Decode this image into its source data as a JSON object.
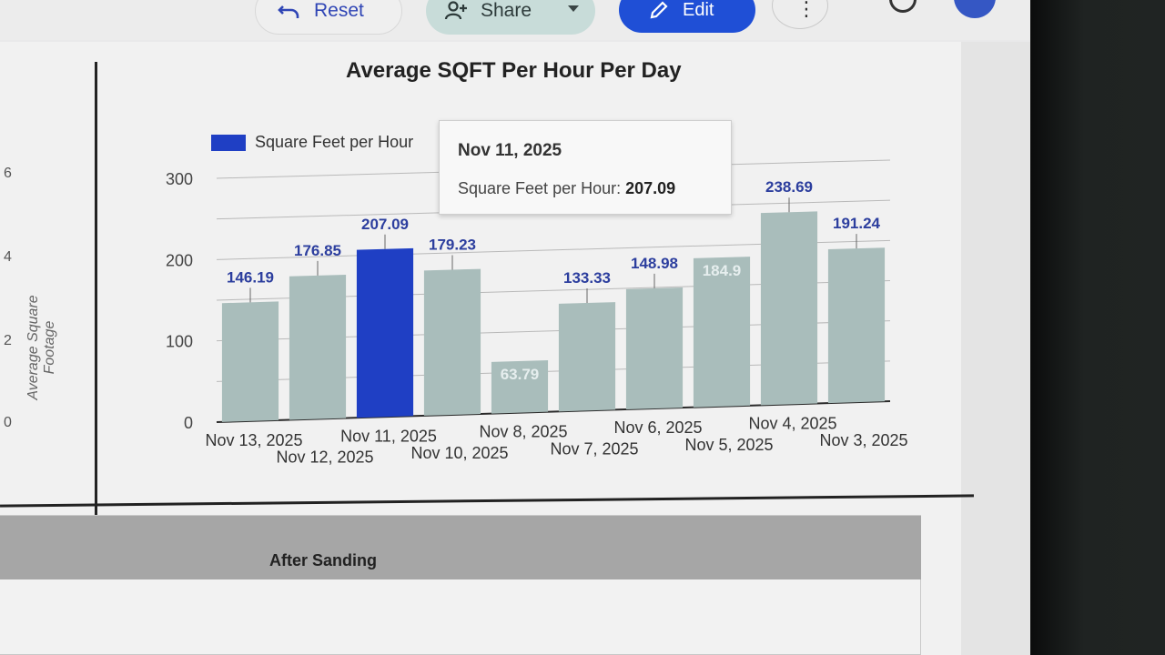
{
  "toolbar": {
    "reset_label": "Reset",
    "share_label": "Share",
    "edit_label": "Edit"
  },
  "left_chart": {
    "y_label": "Average Square Footage",
    "y_ticks": [
      "6",
      "4",
      "2",
      "0"
    ]
  },
  "chart_data": {
    "type": "bar",
    "title": "Average SQFT Per Hour Per Day",
    "legend": {
      "label": "Square Feet per Hour",
      "position": "top-left"
    },
    "categories": [
      "Nov 13, 2025",
      "Nov 12, 2025",
      "Nov 11, 2025",
      "Nov 10, 2025",
      "Nov 8, 2025",
      "Nov 7, 2025",
      "Nov 6, 2025",
      "Nov 5, 2025",
      "Nov 4, 2025",
      "Nov 3, 2025"
    ],
    "series": [
      {
        "name": "Square Feet per Hour",
        "values": [
          146.19,
          176.85,
          207.09,
          179.23,
          63.79,
          133.33,
          148.98,
          184.9,
          238.69,
          191.24
        ]
      }
    ],
    "data_labels": [
      "146.19",
      "176.85",
      "207.09",
      "179.23",
      "63.79",
      "133.33",
      "148.98",
      "184.9",
      "238.69",
      "191.24"
    ],
    "highlighted_index": 2,
    "ylim": [
      0,
      300
    ],
    "y_ticks": [
      "0",
      "100",
      "200",
      "300"
    ],
    "grid": true,
    "colors": {
      "bar": "#a9bdbb",
      "highlight": "#1f3fc4",
      "label": "#2c3e9e"
    }
  },
  "tooltip": {
    "date": "Nov 11, 2025",
    "series_label": "Square Feet per Hour:",
    "value": "207.09"
  },
  "table": {
    "header": "After Sanding"
  }
}
